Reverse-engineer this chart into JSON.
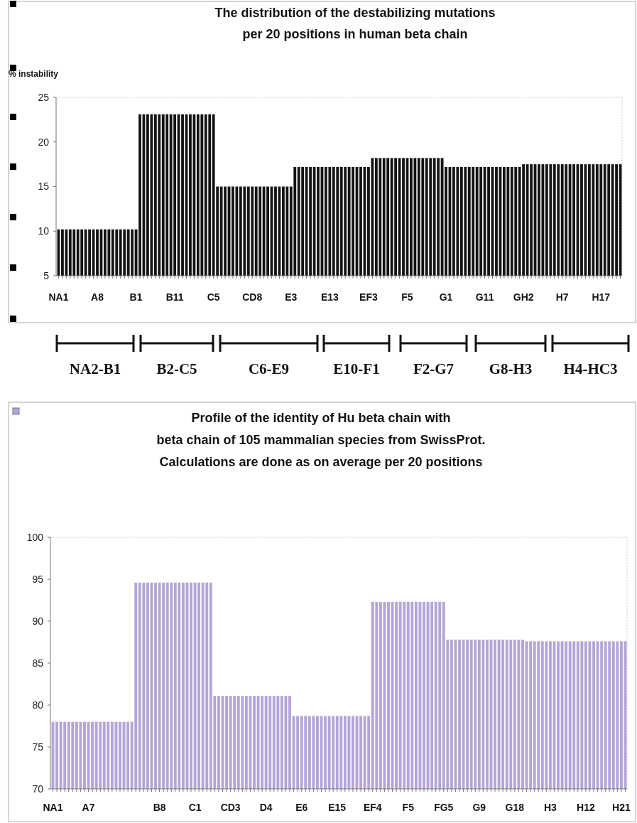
{
  "chart_data": [
    {
      "type": "bar",
      "title": "The distribution of the destabilizing mutations\nper 20 positions in human beta chain",
      "ylabel": "% instability",
      "categories": [
        "NA1",
        null,
        null,
        null,
        null,
        null,
        null,
        null,
        null,
        null,
        "A8",
        null,
        null,
        null,
        null,
        null,
        null,
        null,
        null,
        null,
        "B1",
        null,
        null,
        null,
        null,
        null,
        null,
        null,
        null,
        null,
        "B11",
        null,
        null,
        null,
        null,
        null,
        null,
        null,
        null,
        null,
        "C5",
        null,
        null,
        null,
        null,
        null,
        null,
        null,
        null,
        null,
        "CD8",
        null,
        null,
        null,
        null,
        null,
        null,
        null,
        null,
        null,
        "E3",
        null,
        null,
        null,
        null,
        null,
        null,
        null,
        null,
        null,
        "E13",
        null,
        null,
        null,
        null,
        null,
        null,
        null,
        null,
        null,
        "EF3",
        null,
        null,
        null,
        null,
        null,
        null,
        null,
        null,
        null,
        "F5",
        null,
        null,
        null,
        null,
        null,
        null,
        null,
        null,
        null,
        "G1",
        null,
        null,
        null,
        null,
        null,
        null,
        null,
        null,
        null,
        "G11",
        null,
        null,
        null,
        null,
        null,
        null,
        null,
        null,
        null,
        "GH2",
        null,
        null,
        null,
        null,
        null,
        null,
        null,
        null,
        null,
        "H7",
        null,
        null,
        null,
        null,
        null,
        null,
        null,
        null,
        null,
        "H17",
        null,
        null,
        null,
        null,
        null
      ],
      "values": [
        10.2,
        10.2,
        10.2,
        10.2,
        10.2,
        10.2,
        10.2,
        10.2,
        10.2,
        10.2,
        10.2,
        10.2,
        10.2,
        10.2,
        10.2,
        10.2,
        10.2,
        10.2,
        10.2,
        10.2,
        10.2,
        23.1,
        23.1,
        23.1,
        23.1,
        23.1,
        23.1,
        23.1,
        23.1,
        23.1,
        23.1,
        23.1,
        23.1,
        23.1,
        23.1,
        23.1,
        23.1,
        23.1,
        23.1,
        23.1,
        23.1,
        15,
        15,
        15,
        15,
        15,
        15,
        15,
        15,
        15,
        15,
        15,
        15,
        15,
        15,
        15,
        15,
        15,
        15,
        15,
        15,
        17.2,
        17.2,
        17.2,
        17.2,
        17.2,
        17.2,
        17.2,
        17.2,
        17.2,
        17.2,
        17.2,
        17.2,
        17.2,
        17.2,
        17.2,
        17.2,
        17.2,
        17.2,
        17.2,
        17.2,
        18.2,
        18.2,
        18.2,
        18.2,
        18.2,
        18.2,
        18.2,
        18.2,
        18.2,
        18.2,
        18.2,
        18.2,
        18.2,
        18.2,
        18.2,
        18.2,
        18.2,
        18.2,
        18.2,
        17.2,
        17.2,
        17.2,
        17.2,
        17.2,
        17.2,
        17.2,
        17.2,
        17.2,
        17.2,
        17.2,
        17.2,
        17.2,
        17.2,
        17.2,
        17.2,
        17.2,
        17.2,
        17.2,
        17.2,
        17.5,
        17.5,
        17.5,
        17.5,
        17.5,
        17.5,
        17.5,
        17.5,
        17.5,
        17.5,
        17.5,
        17.5,
        17.5,
        17.5,
        17.5,
        17.5,
        17.5,
        17.5,
        17.5,
        17.5,
        17.5,
        17.5,
        17.5,
        17.5,
        17.5,
        17.5
      ],
      "color": "#141414",
      "ylim": [
        5,
        25
      ],
      "yticks": [
        5,
        10,
        15,
        20,
        25
      ],
      "annotations": [
        "NA2-B1",
        "B2-C5",
        "C6-E9",
        "E10-F1",
        "F2-G7",
        "G8-H3",
        "H4-HC3"
      ]
    },
    {
      "type": "bar",
      "title": "Profile of the identity of  Hu beta chain  with\nbeta chain of 105 mammalian species from SwissProt.\nCalculations are done as on average  per 20 positions",
      "categories": [
        "NA1",
        null,
        null,
        null,
        null,
        null,
        null,
        null,
        null,
        "A7",
        null,
        null,
        null,
        null,
        null,
        null,
        null,
        null,
        null,
        null,
        null,
        null,
        null,
        null,
        null,
        null,
        null,
        "B8",
        null,
        null,
        null,
        null,
        null,
        null,
        null,
        null,
        "C1",
        null,
        null,
        null,
        null,
        null,
        null,
        null,
        null,
        "CD3",
        null,
        null,
        null,
        null,
        null,
        null,
        null,
        null,
        "D4",
        null,
        null,
        null,
        null,
        null,
        null,
        null,
        null,
        "E6",
        null,
        null,
        null,
        null,
        null,
        null,
        null,
        null,
        "E15",
        null,
        null,
        null,
        null,
        null,
        null,
        null,
        null,
        "EF4",
        null,
        null,
        null,
        null,
        null,
        null,
        null,
        null,
        "F5",
        null,
        null,
        null,
        null,
        null,
        null,
        null,
        null,
        "FG5",
        null,
        null,
        null,
        null,
        null,
        null,
        null,
        null,
        "G9",
        null,
        null,
        null,
        null,
        null,
        null,
        null,
        null,
        "G18",
        null,
        null,
        null,
        null,
        null,
        null,
        null,
        null,
        "H3",
        null,
        null,
        null,
        null,
        null,
        null,
        null,
        null,
        "H12",
        null,
        null,
        null,
        null,
        null,
        null,
        null,
        null,
        "H21",
        null
      ],
      "values": [
        78,
        78,
        78,
        78,
        78,
        78,
        78,
        78,
        78,
        78,
        78,
        78,
        78,
        78,
        78,
        78,
        78,
        78,
        78,
        78,
        78,
        94.6,
        94.6,
        94.6,
        94.6,
        94.6,
        94.6,
        94.6,
        94.6,
        94.6,
        94.6,
        94.6,
        94.6,
        94.6,
        94.6,
        94.6,
        94.6,
        94.6,
        94.6,
        94.6,
        94.6,
        81.1,
        81.1,
        81.1,
        81.1,
        81.1,
        81.1,
        81.1,
        81.1,
        81.1,
        81.1,
        81.1,
        81.1,
        81.1,
        81.1,
        81.1,
        81.1,
        81.1,
        81.1,
        81.1,
        81.1,
        78.7,
        78.7,
        78.7,
        78.7,
        78.7,
        78.7,
        78.7,
        78.7,
        78.7,
        78.7,
        78.7,
        78.7,
        78.7,
        78.7,
        78.7,
        78.7,
        78.7,
        78.7,
        78.7,
        78.7,
        92.3,
        92.3,
        92.3,
        92.3,
        92.3,
        92.3,
        92.3,
        92.3,
        92.3,
        92.3,
        92.3,
        92.3,
        92.3,
        92.3,
        92.3,
        92.3,
        92.3,
        92.3,
        92.3,
        87.8,
        87.8,
        87.8,
        87.8,
        87.8,
        87.8,
        87.8,
        87.8,
        87.8,
        87.8,
        87.8,
        87.8,
        87.8,
        87.8,
        87.8,
        87.8,
        87.8,
        87.8,
        87.8,
        87.8,
        87.6,
        87.6,
        87.6,
        87.6,
        87.6,
        87.6,
        87.6,
        87.6,
        87.6,
        87.6,
        87.6,
        87.6,
        87.6,
        87.6,
        87.6,
        87.6,
        87.6,
        87.6,
        87.6,
        87.6,
        87.6,
        87.6,
        87.6,
        87.6,
        87.6,
        87.6
      ],
      "color": "#b4a5d8",
      "ylim": [
        70,
        100
      ],
      "yticks": [
        70,
        75,
        80,
        85,
        90,
        95,
        100
      ]
    }
  ]
}
